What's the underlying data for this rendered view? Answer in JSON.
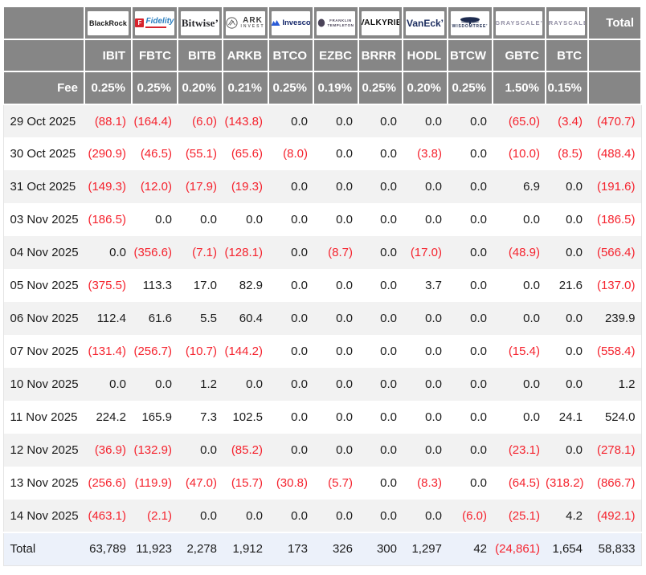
{
  "table": {
    "fee_label": "Fee",
    "total_label": "Total",
    "providers": [
      {
        "ticker": "IBIT",
        "fee": "0.25%",
        "logo": "blackrock",
        "logo_text": "BlackRock"
      },
      {
        "ticker": "FBTC",
        "fee": "0.25%",
        "logo": "fidelity",
        "logo_text": "Fidelity"
      },
      {
        "ticker": "BITB",
        "fee": "0.20%",
        "logo": "bitwise",
        "logo_text": "Bitwise"
      },
      {
        "ticker": "ARKB",
        "fee": "0.21%",
        "logo": "ark",
        "logo_text": "ARK",
        "logo_text2": "INVEST"
      },
      {
        "ticker": "BTCO",
        "fee": "0.25%",
        "logo": "invesco",
        "logo_text": "Invesco"
      },
      {
        "ticker": "EZBC",
        "fee": "0.19%",
        "logo": "franklin",
        "logo_text": "FRANKLIN",
        "logo_text2": "TEMPLETON"
      },
      {
        "ticker": "BRRR",
        "fee": "0.25%",
        "logo": "valkyrie",
        "logo_text": "VALKYRIE"
      },
      {
        "ticker": "HODL",
        "fee": "0.20%",
        "logo": "vaneck",
        "logo_text": "VanEck"
      },
      {
        "ticker": "BTCW",
        "fee": "0.25%",
        "logo": "wisdomtree",
        "logo_text": "WISDOMTREE"
      },
      {
        "ticker": "GBTC",
        "fee": "1.50%",
        "logo": "grayscale",
        "logo_text": "GRAYSCALE"
      },
      {
        "ticker": "BTC",
        "fee": "0.15%",
        "logo": "grayscale",
        "logo_text": "GRAYSCALE"
      }
    ],
    "rows": [
      {
        "date": "29 Oct 2025",
        "values": [
          "(88.1)",
          "(164.4)",
          "(6.0)",
          "(143.8)",
          "0.0",
          "0.0",
          "0.0",
          "0.0",
          "0.0",
          "(65.0)",
          "(3.4)",
          "(470.7)"
        ]
      },
      {
        "date": "30 Oct 2025",
        "values": [
          "(290.9)",
          "(46.5)",
          "(55.1)",
          "(65.6)",
          "(8.0)",
          "0.0",
          "0.0",
          "(3.8)",
          "0.0",
          "(10.0)",
          "(8.5)",
          "(488.4)"
        ]
      },
      {
        "date": "31 Oct 2025",
        "values": [
          "(149.3)",
          "(12.0)",
          "(17.9)",
          "(19.3)",
          "0.0",
          "0.0",
          "0.0",
          "0.0",
          "0.0",
          "6.9",
          "0.0",
          "(191.6)"
        ]
      },
      {
        "date": "03 Nov 2025",
        "values": [
          "(186.5)",
          "0.0",
          "0.0",
          "0.0",
          "0.0",
          "0.0",
          "0.0",
          "0.0",
          "0.0",
          "0.0",
          "0.0",
          "(186.5)"
        ]
      },
      {
        "date": "04 Nov 2025",
        "values": [
          "0.0",
          "(356.6)",
          "(7.1)",
          "(128.1)",
          "0.0",
          "(8.7)",
          "0.0",
          "(17.0)",
          "0.0",
          "(48.9)",
          "0.0",
          "(566.4)"
        ]
      },
      {
        "date": "05 Nov 2025",
        "values": [
          "(375.5)",
          "113.3",
          "17.0",
          "82.9",
          "0.0",
          "0.0",
          "0.0",
          "3.7",
          "0.0",
          "0.0",
          "21.6",
          "(137.0)"
        ]
      },
      {
        "date": "06 Nov 2025",
        "values": [
          "112.4",
          "61.6",
          "5.5",
          "60.4",
          "0.0",
          "0.0",
          "0.0",
          "0.0",
          "0.0",
          "0.0",
          "0.0",
          "239.9"
        ]
      },
      {
        "date": "07 Nov 2025",
        "values": [
          "(131.4)",
          "(256.7)",
          "(10.7)",
          "(144.2)",
          "0.0",
          "0.0",
          "0.0",
          "0.0",
          "0.0",
          "(15.4)",
          "0.0",
          "(558.4)"
        ]
      },
      {
        "date": "10 Nov 2025",
        "values": [
          "0.0",
          "0.0",
          "1.2",
          "0.0",
          "0.0",
          "0.0",
          "0.0",
          "0.0",
          "0.0",
          "0.0",
          "0.0",
          "1.2"
        ]
      },
      {
        "date": "11 Nov 2025",
        "values": [
          "224.2",
          "165.9",
          "7.3",
          "102.5",
          "0.0",
          "0.0",
          "0.0",
          "0.0",
          "0.0",
          "0.0",
          "24.1",
          "524.0"
        ]
      },
      {
        "date": "12 Nov 2025",
        "values": [
          "(36.9)",
          "(132.9)",
          "0.0",
          "(85.2)",
          "0.0",
          "0.0",
          "0.0",
          "0.0",
          "0.0",
          "(23.1)",
          "0.0",
          "(278.1)"
        ]
      },
      {
        "date": "13 Nov 2025",
        "values": [
          "(256.6)",
          "(119.9)",
          "(47.0)",
          "(15.7)",
          "(30.8)",
          "(5.7)",
          "0.0",
          "(8.3)",
          "0.0",
          "(64.5)",
          "(318.2)",
          "(866.7)"
        ]
      },
      {
        "date": "14 Nov 2025",
        "values": [
          "(463.1)",
          "(2.1)",
          "0.0",
          "0.0",
          "0.0",
          "0.0",
          "0.0",
          "0.0",
          "(6.0)",
          "(25.1)",
          "4.2",
          "(492.1)"
        ]
      }
    ],
    "total_row": {
      "label": "Total",
      "values": [
        "63,789",
        "11,923",
        "2,278",
        "1,912",
        "173",
        "326",
        "300",
        "1,297",
        "42",
        "(24,861)",
        "1,654",
        "58,833"
      ]
    }
  },
  "colors": {
    "header_bg": "#868686",
    "negative_red": "#f5232e",
    "row_alt_bg": "#f2f2f2",
    "total_row_bg": "#ecf1fa"
  }
}
